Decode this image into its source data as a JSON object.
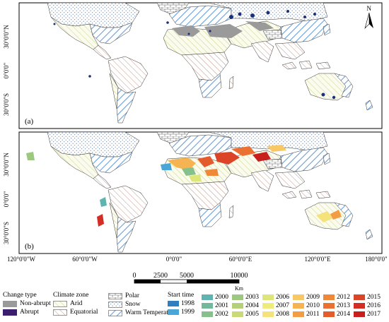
{
  "panels": [
    {
      "label": "(a)"
    },
    {
      "label": "(b)"
    }
  ],
  "north_arrow": {
    "label": "N"
  },
  "lat_labels": [
    "30°0'0\"N",
    "0°0'0\"",
    "30°0'0\"S"
  ],
  "lon_labels": [
    "120°0'0\"W",
    "60°0'0\"W",
    "0°0'0\"",
    "60°0'0\"E",
    "120°0'0\"E",
    "180°0'0\""
  ],
  "scale_bar": {
    "ticks": [
      "0",
      "2500",
      "5000",
      "10000"
    ],
    "unit": "Km"
  },
  "legend": {
    "change_type": {
      "title": "Change type",
      "items": [
        {
          "label": "Non-abrupt",
          "color": "#9a9a9a"
        },
        {
          "label": "Abrupt",
          "color": "#3b1f6e"
        }
      ]
    },
    "climate_zone": {
      "title": "Climate zone",
      "items": [
        {
          "label": "Arid",
          "pattern": "arid-hatch"
        },
        {
          "label": "Equatorial",
          "pattern": "equatorial-hatch"
        },
        {
          "label": "Polar",
          "pattern": "polar-bricks"
        },
        {
          "label": "Snow",
          "pattern": "snow-dots"
        },
        {
          "label": "Warm Temperate",
          "pattern": "warm-hatch"
        }
      ]
    },
    "start_time": {
      "title": "Start time",
      "items": [
        {
          "year": "1998",
          "color": "#2f7fc0"
        },
        {
          "year": "1999",
          "color": "#4aa6d6"
        },
        {
          "year": "2000",
          "color": "#5fb3b0"
        },
        {
          "year": "2001",
          "color": "#72b89c"
        },
        {
          "year": "2002",
          "color": "#86c08a"
        },
        {
          "year": "2003",
          "color": "#9cc87f"
        },
        {
          "year": "2004",
          "color": "#b4d07a"
        },
        {
          "year": "2005",
          "color": "#c9da79"
        },
        {
          "year": "2006",
          "color": "#dde67a"
        },
        {
          "year": "2007",
          "color": "#eeec7c"
        },
        {
          "year": "2008",
          "color": "#f6e27a"
        },
        {
          "year": "2009",
          "color": "#f7c964"
        },
        {
          "year": "2010",
          "color": "#f5b352"
        },
        {
          "year": "2011",
          "color": "#f29d44"
        },
        {
          "year": "2012",
          "color": "#ef8839"
        },
        {
          "year": "2013",
          "color": "#ea7132"
        },
        {
          "year": "2014",
          "color": "#e45b2c"
        },
        {
          "year": "2015",
          "color": "#dc4427"
        },
        {
          "year": "2016",
          "color": "#d42d23"
        },
        {
          "year": "2017",
          "color": "#c81e1e"
        }
      ]
    }
  }
}
